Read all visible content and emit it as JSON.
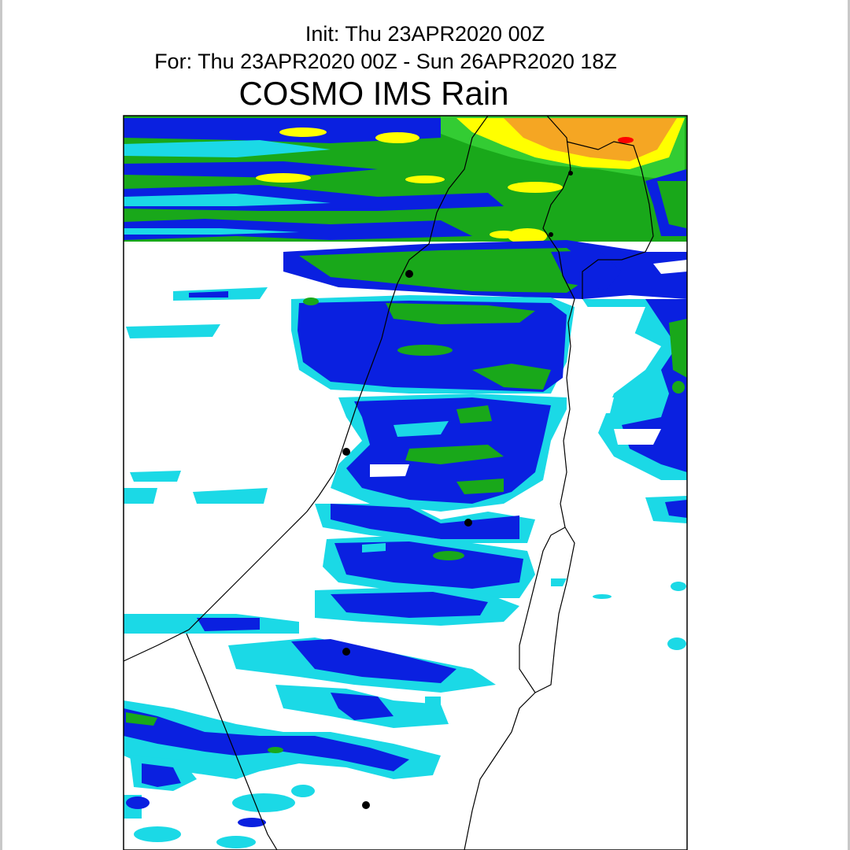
{
  "header": {
    "init": "Init: Thu 23APR2020 00Z",
    "valid": "For: Thu 23APR2020 00Z - Sun 26APR2020 18Z",
    "title": "COSMO IMS Rain"
  },
  "colors": {
    "light_cyan": "#00e5e5",
    "cyan": "#1bd9e6",
    "blue": "#0a20e0",
    "green": "#19a81a",
    "light_green": "#33cc33",
    "yellow": "#ffff00",
    "orange": "#f5a623",
    "red": "#ff0000",
    "border": "#000000"
  }
}
